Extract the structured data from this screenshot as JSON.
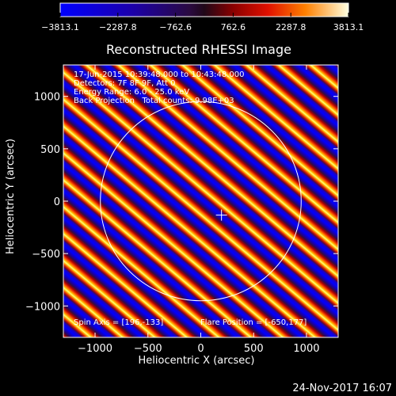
{
  "chart_data": {
    "type": "heatmap",
    "title": "Reconstructed RHESSI Image",
    "xlabel": "Heliocentric X (arcsec)",
    "ylabel": "Heliocentric Y (arcsec)",
    "xlim": [
      -1300,
      1300
    ],
    "ylim": [
      -1300,
      1300
    ],
    "x_ticks": [
      -1000,
      -500,
      0,
      500,
      1000
    ],
    "x_tick_labels": [
      "−1000",
      "−500",
      "0",
      "500",
      "1000"
    ],
    "y_ticks": [
      -1000,
      -500,
      0,
      500,
      1000
    ],
    "y_tick_labels": [
      "−1000",
      "−500",
      "0",
      "500",
      "1000"
    ],
    "colorbar": {
      "min": -3813.1,
      "max": 3813.1,
      "ticks": [
        -3813.1,
        -2287.8,
        -762.6,
        762.6,
        2287.8,
        3813.1
      ],
      "tick_labels": [
        "−3813.1",
        "−2287.8",
        "−762.6",
        "762.6",
        "2287.8",
        "3813.1"
      ]
    },
    "annotations": [
      "17-Jun-2015 10:39:48.000 to 10:43:48.000",
      "Detectors: 7F 8F 9F, Att 0",
      "Energy Range: 6.0 - 25.0 keV",
      "Back Projection   Total counts: 9.98E+03"
    ],
    "spin_axis_text": "Spin Axis = [196,-133]",
    "flare_position_text": "Flare Position = [-650,177]",
    "spin_axis": [
      196,
      -133
    ],
    "solar_limb_radius_arcsec": 950,
    "grid": false
  },
  "timestamp": "24-Nov-2017 16:07"
}
